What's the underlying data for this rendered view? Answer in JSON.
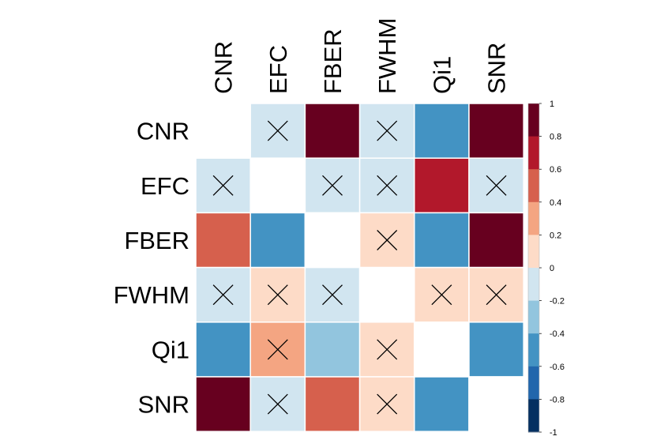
{
  "chart_data": {
    "type": "heatmap",
    "title": "",
    "variables": [
      "CNR",
      "EFC",
      "FBER",
      "FWHM",
      "Qi1",
      "SNR"
    ],
    "bin_width": 0.2,
    "matrix": [
      [
        null,
        -0.1,
        0.9,
        -0.1,
        -0.5,
        0.9
      ],
      [
        -0.1,
        null,
        -0.1,
        -0.1,
        0.7,
        -0.1
      ],
      [
        0.5,
        -0.5,
        null,
        0.1,
        -0.5,
        0.9
      ],
      [
        -0.1,
        0.1,
        -0.1,
        null,
        0.1,
        0.1
      ],
      [
        -0.5,
        0.3,
        -0.3,
        0.1,
        null,
        -0.5
      ],
      [
        0.9,
        -0.1,
        0.5,
        0.1,
        -0.5,
        null
      ]
    ],
    "crossed": [
      [
        false,
        true,
        false,
        true,
        false,
        false
      ],
      [
        true,
        false,
        true,
        true,
        false,
        true
      ],
      [
        false,
        false,
        false,
        true,
        false,
        false
      ],
      [
        true,
        true,
        true,
        false,
        true,
        true
      ],
      [
        false,
        true,
        false,
        true,
        false,
        false
      ],
      [
        false,
        true,
        false,
        true,
        false,
        false
      ]
    ],
    "colorbar": {
      "min": -1,
      "max": 1,
      "ticks": [
        "1",
        "0.8",
        "0.6",
        "0.4",
        "0.2",
        "0",
        "-0.2",
        "-0.4",
        "-0.6",
        "-0.8",
        "-1"
      ],
      "colors_high_to_low": [
        "#67001F",
        "#B2182B",
        "#D6604D",
        "#F4A582",
        "#FDDBC7",
        "#D1E5F0",
        "#92C5DE",
        "#4393C3",
        "#2166AC",
        "#053061"
      ]
    },
    "legend_placement": "right",
    "grid": true
  }
}
